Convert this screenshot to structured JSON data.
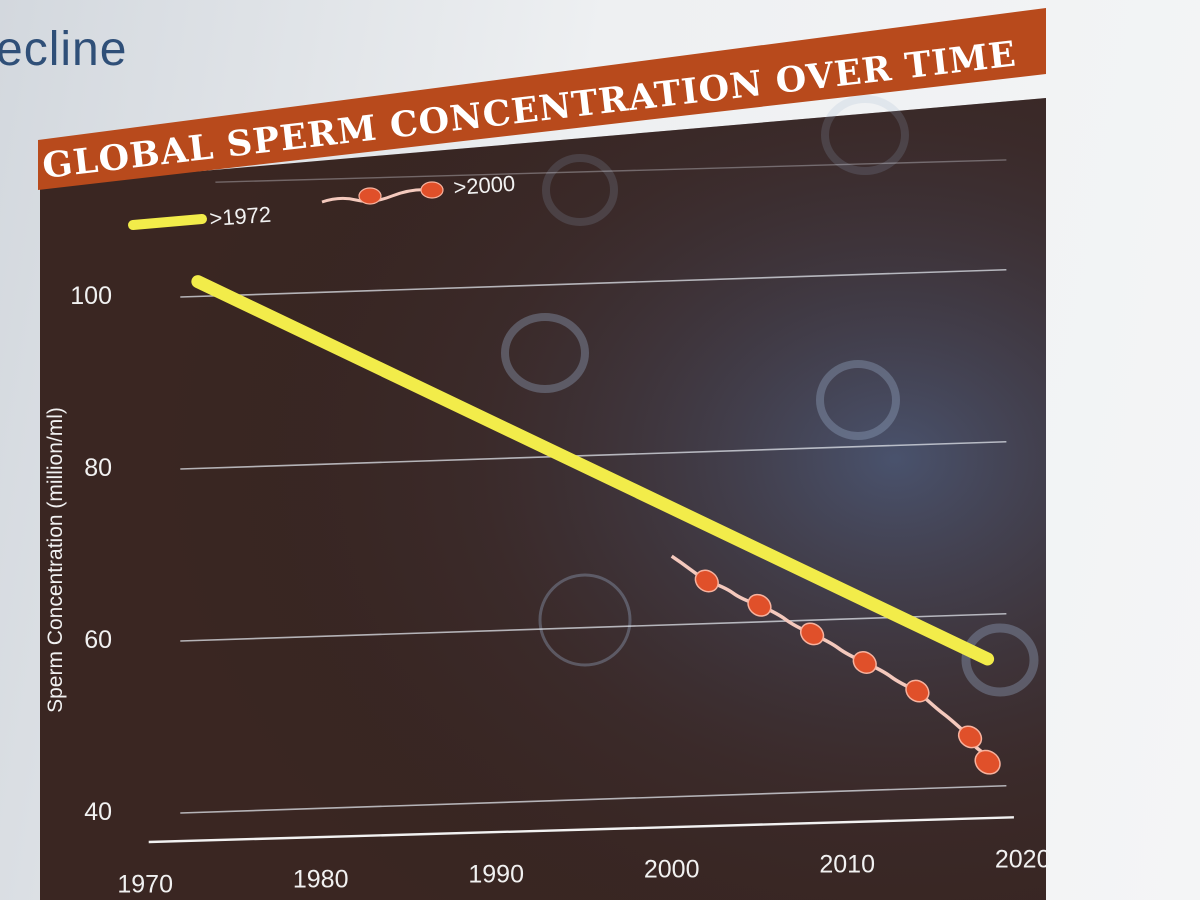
{
  "slide": {
    "title_fragment": "ecline"
  },
  "chart_data": {
    "type": "line",
    "title": "GLOBAL SPERM CONCENTRATION OVER TIME",
    "xlabel": "",
    "ylabel": "Sperm Concentration (million/ml)",
    "xlim": [
      1970,
      2020
    ],
    "ylim": [
      35,
      110
    ],
    "x_ticks": [
      "1970",
      "1980",
      "1990",
      "2000",
      "2010",
      "2020"
    ],
    "y_ticks": [
      "100",
      "80",
      "60",
      "40"
    ],
    "grid": true,
    "legend_position": "top-left",
    "series": [
      {
        "name": ">1972",
        "color": "#f2ec4a",
        "points": [
          [
            1973,
            101.5
          ],
          [
            2018,
            55
          ]
        ]
      },
      {
        "name": ">2000",
        "color": "#e0502a",
        "points": [
          [
            2000,
            68
          ],
          [
            2002,
            65
          ],
          [
            2005,
            62
          ],
          [
            2008,
            58.5
          ],
          [
            2011,
            55
          ],
          [
            2014,
            51.5
          ],
          [
            2017,
            46
          ],
          [
            2018,
            43
          ]
        ],
        "markers": [
          [
            2002,
            65
          ],
          [
            2005,
            62
          ],
          [
            2008,
            58.5
          ],
          [
            2011,
            55
          ],
          [
            2014,
            51.5
          ],
          [
            2017,
            46
          ]
        ]
      }
    ]
  }
}
